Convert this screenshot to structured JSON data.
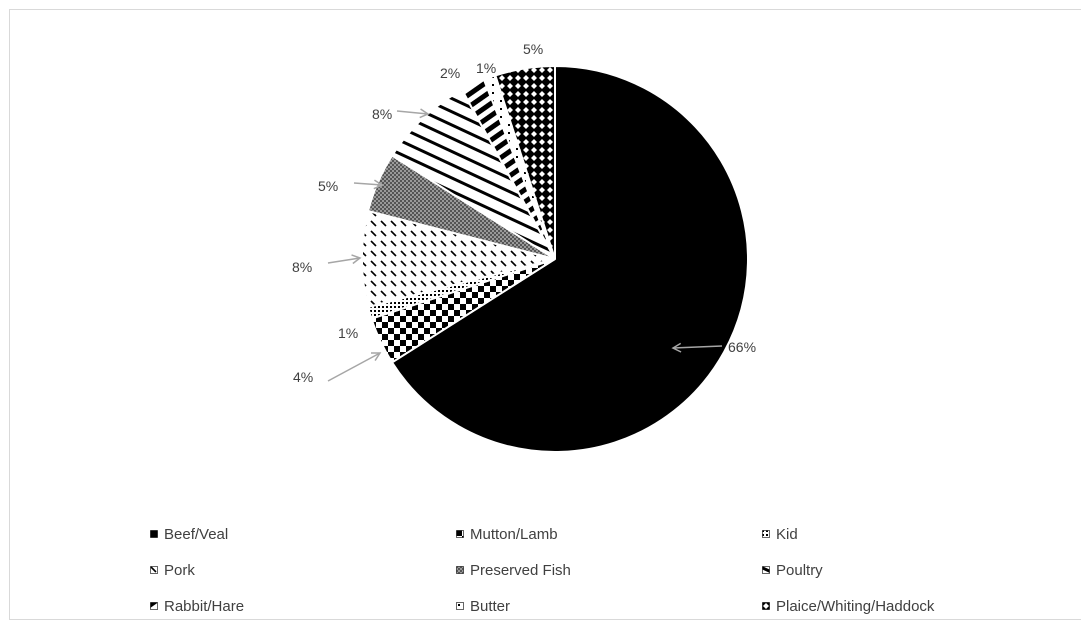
{
  "colors": {
    "label_text": "#404040",
    "leader_line": "#a6a6a6",
    "slice_stroke": "#ffffff",
    "ink": "#000000"
  },
  "chart_data": {
    "type": "pie",
    "title": "",
    "grid": false,
    "legend_placement": "bottom",
    "start_angle_deg": 0,
    "direction": "clockwise",
    "slices": [
      {
        "name": "Beef/Veal",
        "value": 66,
        "label": "66%",
        "pattern": "solid-black"
      },
      {
        "name": "Mutton/Lamb",
        "value": 4,
        "label": "4%",
        "pattern": "checkerboard"
      },
      {
        "name": "Kid",
        "value": 1,
        "label": "1%",
        "pattern": "small-dots"
      },
      {
        "name": "Pork",
        "value": 8,
        "label": "8%",
        "pattern": "dashed-diagonal"
      },
      {
        "name": "Preserved Fish",
        "value": 5,
        "label": "5%",
        "pattern": "fine-grid-gray"
      },
      {
        "name": "Poultry",
        "value": 8,
        "label": "8%",
        "pattern": "diagonal-stripes-down"
      },
      {
        "name": "Rabbit/Hare",
        "value": 2,
        "label": "2%",
        "pattern": "bold-diagonal-bars"
      },
      {
        "name": "Butter",
        "value": 1,
        "label": "1%",
        "pattern": "sparse-dots"
      },
      {
        "name": "Plaice/Whiting/Haddock",
        "value": 5,
        "label": "5%",
        "pattern": "diamond-lattice"
      }
    ]
  }
}
